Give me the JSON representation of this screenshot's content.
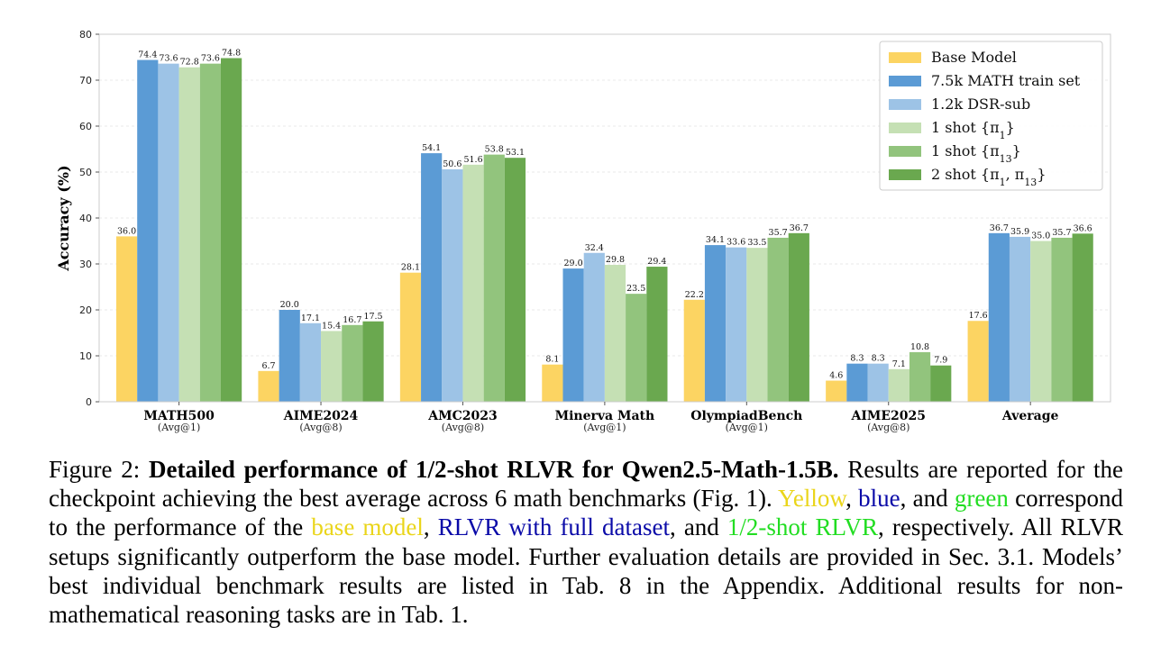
{
  "chart_data": {
    "type": "bar",
    "ylabel": "Accuracy (%)",
    "ylim": [
      0,
      80
    ],
    "yticks": [
      0,
      10,
      20,
      30,
      40,
      50,
      60,
      70,
      80
    ],
    "grid": true,
    "legend_position": "top-right",
    "categories": [
      {
        "name": "MATH500",
        "sub": "(Avg@1)"
      },
      {
        "name": "AIME2024",
        "sub": "(Avg@8)"
      },
      {
        "name": "AMC2023",
        "sub": "(Avg@8)"
      },
      {
        "name": "Minerva Math",
        "sub": "(Avg@1)"
      },
      {
        "name": "OlympiadBench",
        "sub": "(Avg@1)"
      },
      {
        "name": "AIME2025",
        "sub": "(Avg@8)"
      },
      {
        "name": "Average",
        "sub": ""
      }
    ],
    "series": [
      {
        "name": "Base Model",
        "color": "#fcd462",
        "values": [
          36.0,
          6.7,
          28.1,
          8.1,
          22.2,
          4.6,
          17.6
        ]
      },
      {
        "name": "7.5k MATH train set",
        "color": "#5b9bd5",
        "values": [
          74.4,
          20.0,
          54.1,
          29.0,
          34.1,
          8.3,
          36.7
        ]
      },
      {
        "name": "1.2k DSR-sub",
        "color": "#9dc3e6",
        "values": [
          73.6,
          17.1,
          50.6,
          32.4,
          33.6,
          8.3,
          35.9
        ]
      },
      {
        "name": "1 shot {π1}",
        "color": "#c5e0b4",
        "values": [
          72.8,
          15.4,
          51.6,
          29.8,
          33.5,
          7.1,
          35.0
        ]
      },
      {
        "name": "1 shot {π13}",
        "color": "#92c47d",
        "values": [
          73.6,
          16.7,
          53.8,
          23.5,
          35.7,
          10.8,
          35.7
        ]
      },
      {
        "name": "2 shot {π1, π13}",
        "color": "#6aa84f",
        "values": [
          74.8,
          17.5,
          53.1,
          29.4,
          36.7,
          7.9,
          36.6
        ]
      }
    ]
  },
  "legend_labels": [
    {
      "main": "Base Model",
      "sub": ""
    },
    {
      "main": "7.5k MATH train set",
      "sub": ""
    },
    {
      "main": "1.2k DSR-sub",
      "sub": ""
    },
    {
      "main": "1 shot {π",
      "sub": "1",
      "end": "}"
    },
    {
      "main": "1 shot {π",
      "sub": "13",
      "end": "}"
    },
    {
      "main": "2 shot {π",
      "sub": "1",
      "mid": ", π",
      "sub2": "13",
      "end": "}"
    }
  ],
  "caption": {
    "fig_label": "Figure 2:",
    "bold_title": "Detailed performance of 1/2-shot RLVR for Qwen2.5-Math-1.5B.",
    "t1": "Results are reported for the checkpoint achieving the best average across 6 math benchmarks (Fig. 1).",
    "yellow": "Yellow",
    "t2": ",",
    "blue": "blue",
    "t3": ", and",
    "green": "green",
    "t4": "correspond to the performance of the",
    "base_model": "base model",
    "t5": ",",
    "rlvr_full": "RLVR with full dataset",
    "t6": ", and",
    "rlvr_shot": "1/2-shot RLVR",
    "t7": ", respectively. All RLVR setups significantly outperform the base model. Further evaluation details are provided in Sec. 3.1. Models’ best individual benchmark results are listed in Tab. 8 in the Appendix. Additional results for non-mathematical reasoning tasks are in Tab. 1."
  }
}
